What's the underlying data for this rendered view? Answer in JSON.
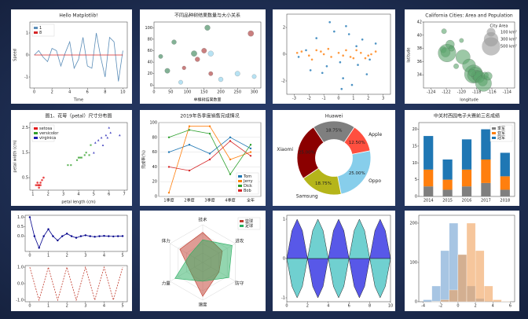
{
  "chart_data": [
    {
      "type": "line",
      "title": "Hello Matplotlib!",
      "xlabel": "Time",
      "ylabel": "Speed",
      "x": [
        0,
        0.5,
        1,
        1.5,
        2,
        2.5,
        3,
        3.5,
        4,
        4.5,
        5,
        5.5,
        6,
        6.5,
        7,
        7.5,
        8,
        8.5,
        9,
        9.5,
        10
      ],
      "series": [
        {
          "name": "1",
          "color": "#5b8db8",
          "values": [
            0,
            0.2,
            -0.1,
            -0.3,
            0.3,
            0.2,
            -0.5,
            0.1,
            0.6,
            -0.6,
            -0.2,
            0.8,
            -0.5,
            -0.6,
            1,
            -0.1,
            -1,
            0.8,
            0.6,
            -1.2,
            0.2
          ]
        },
        {
          "name": "8",
          "color": "#d62728",
          "values": [
            0,
            0,
            0,
            0,
            0,
            0,
            0,
            0,
            0,
            0,
            0,
            0,
            0,
            0,
            0,
            0,
            0,
            0,
            0,
            0,
            0
          ]
        }
      ],
      "xlim": [
        -0.5,
        10.5
      ],
      "ylim": [
        -1.5,
        1.5
      ],
      "xticks": [
        0,
        2,
        4,
        6,
        8,
        10
      ],
      "yticks": [
        -1,
        0,
        1
      ],
      "legend": "upper left"
    },
    {
      "type": "scatter",
      "title": "不同品种树结果数量与大小关系",
      "xlabel": "单棵树结果数量",
      "series": [
        {
          "color": "#2e7d4f",
          "x": [
            20,
            40,
            60,
            120,
            160
          ],
          "values": [
            50,
            25,
            75,
            55,
            100
          ],
          "sizes": [
            20,
            30,
            25,
            40,
            35
          ]
        },
        {
          "color": "#a52a2a",
          "x": [
            90,
            130,
            150,
            170,
            290
          ],
          "values": [
            30,
            45,
            60,
            20,
            90
          ],
          "sizes": [
            15,
            25,
            30,
            20,
            40
          ]
        },
        {
          "color": "#87ceeb",
          "x": [
            80,
            170,
            200,
            250,
            300
          ],
          "values": [
            5,
            55,
            10,
            20,
            15
          ],
          "sizes": [
            20,
            35,
            25,
            30,
            20
          ]
        }
      ],
      "xlim": [
        0,
        320
      ],
      "ylim": [
        -5,
        110
      ],
      "xticks": [
        0,
        50,
        100,
        150,
        200,
        250,
        300
      ],
      "yticks": [
        0,
        20,
        40,
        60,
        80,
        100
      ]
    },
    {
      "type": "scatter",
      "series": [
        {
          "color": "#1f77b4",
          "x": [
            -1.5,
            0.3,
            1.2,
            -0.8,
            0.5,
            2.1,
            -2.2,
            0.9,
            -0.3,
            1.6,
            -1.1,
            0.1,
            2.5,
            -1.9,
            0.7,
            -0.6,
            1.3,
            -2.7,
            0.2,
            1.9
          ],
          "values": [
            1.2,
            -1.8,
            0.6,
            -0.9,
            2.1,
            -0.4,
            0.3,
            -2.3,
            1.7,
            1.1,
            -1.4,
            -0.6,
            0.8,
            -1.2,
            1.5,
            2.4,
            -0.8,
            -0.2,
            -2.6,
            -1.5
          ]
        },
        {
          "color": "#ff7f0e",
          "x": [
            -2.5,
            -2,
            -1.5,
            -1,
            -0.5,
            0,
            0.5,
            1,
            1.5,
            2,
            2.5,
            -1.8,
            -0.7,
            0.3,
            1.2,
            2.2,
            -2.8,
            0.8,
            -1.2,
            1.8
          ],
          "values": [
            0.2,
            -0.1,
            0.3,
            0,
            -0.2,
            0.1,
            0.3,
            -0.3,
            0.1,
            -0.1,
            0.2,
            -0.4,
            0.4,
            -0.1,
            0.3,
            0,
            0.1,
            -0.2,
            0.2,
            -0.3
          ]
        }
      ],
      "xlim": [
        -3.5,
        3.5
      ],
      "ylim": [
        -3,
        3
      ],
      "xticks": [
        -3,
        -2,
        -1,
        0,
        1,
        2,
        3
      ],
      "yticks": [
        -2,
        0,
        2
      ]
    },
    {
      "type": "scatter",
      "title": "California Cities: Area and Population",
      "xlabel": "longitude",
      "ylabel": "latitude",
      "series": [
        {
          "color": "#5aa36a",
          "x": [
            -122.4,
            -122.1,
            -121.9,
            -121.5,
            -120.7,
            -119.8,
            -119,
            -118.4,
            -118.2,
            -118,
            -117.9,
            -117.7,
            -117.2,
            -117.1,
            -116.9,
            -116.5,
            -121.3,
            -122.3,
            -120,
            -118.6
          ],
          "values": [
            37.8,
            37.4,
            37.3,
            38.6,
            35.3,
            36.7,
            35.4,
            34.1,
            34,
            33.9,
            33.8,
            33.7,
            33,
            32.7,
            33.9,
            33.8,
            38,
            40.6,
            39.2,
            34.3
          ],
          "sizes": [
            50,
            120,
            470,
            100,
            30,
            300,
            250,
            500,
            350,
            150,
            80,
            200,
            120,
            380,
            60,
            90,
            40,
            30,
            20,
            70
          ]
        }
      ],
      "xlim": [
        -125,
        -113
      ],
      "ylim": [
        32,
        42
      ],
      "xticks": [
        -124,
        -122,
        -120,
        -118,
        -116,
        -114
      ],
      "yticks": [
        34,
        36,
        38,
        40,
        42
      ],
      "legend_title": "City Area",
      "size_legend": [
        {
          "value": 100,
          "label": "100 km²"
        },
        {
          "value": 300,
          "label": "300 km²"
        },
        {
          "value": 500,
          "label": "500 km²"
        }
      ]
    },
    {
      "type": "scatter",
      "title": "图1、花萼（petal）尺寸分布图",
      "xlabel": "petal length (cm)",
      "ylabel": "petal width (cm)",
      "series": [
        {
          "name": "setosa",
          "color": "#e31a1c",
          "marker": "o",
          "x": [
            1.3,
            1.4,
            1.5,
            1.4,
            1.6,
            1.2,
            1.5,
            1.7,
            1.3,
            1.4
          ],
          "values": [
            0.2,
            0.2,
            0.3,
            0.1,
            0.4,
            0.2,
            0.2,
            0.5,
            0.3,
            0.2
          ]
        },
        {
          "name": "versicolor",
          "color": "#33a02c",
          "marker": "s",
          "x": [
            3.5,
            4,
            4.5,
            4.2,
            3.9,
            4.7,
            4.4,
            3.3,
            4.1,
            4.8
          ],
          "values": [
            1,
            1.3,
            1.5,
            1.3,
            1.2,
            1.4,
            1.4,
            1,
            1.3,
            1.8
          ]
        },
        {
          "name": "virginica",
          "color": "#1f1fb4",
          "marker": "^",
          "x": [
            5.1,
            5.5,
            6,
            5.8,
            5.6,
            6.1,
            5,
            5.3,
            6.7,
            5.9
          ],
          "values": [
            1.9,
            2.1,
            2.5,
            2.2,
            1.8,
            2.3,
            1.5,
            2,
            2.2,
            2.1
          ]
        }
      ],
      "xlim": [
        0.8,
        7.2
      ],
      "ylim": [
        0,
        2.7
      ],
      "xticks": [
        1,
        2,
        3,
        4,
        5,
        6,
        7
      ],
      "yticks": [
        0.5,
        1.5,
        2.5
      ],
      "legend": "upper left"
    },
    {
      "type": "line",
      "title": "2019年各季度销售完成情况",
      "ylabel": "完成率(%)",
      "categories": [
        "1季度",
        "2季度",
        "3季度",
        "4季度",
        "全年"
      ],
      "series": [
        {
          "name": "Tom",
          "color": "#1f77b4",
          "marker": "o",
          "values": [
            60,
            70,
            58,
            80,
            65
          ]
        },
        {
          "name": "Jerry",
          "color": "#ff7f0e",
          "marker": "o",
          "values": [
            5,
            95,
            95,
            50,
            60
          ]
        },
        {
          "name": "Dick",
          "color": "#2ca02c",
          "marker": "o",
          "values": [
            80,
            90,
            85,
            30,
            70
          ]
        },
        {
          "name": "Bob",
          "color": "#d62728",
          "marker": "o",
          "values": [
            40,
            35,
            50,
            75,
            55
          ]
        }
      ],
      "ylim": [
        0,
        100
      ],
      "yticks": [
        0,
        20,
        40,
        60,
        80,
        100
      ],
      "grid": true,
      "legend": "lower right"
    },
    {
      "type": "pie",
      "categories": [
        "Huawei",
        "Apple",
        "Oppo",
        "Samsung",
        "Xiaomi"
      ],
      "values": [
        18.75,
        12.5,
        25,
        18.75,
        25
      ],
      "value_labels": [
        "18.75%",
        "12.50%",
        "25.00%",
        "18.75%",
        "25.00%"
      ],
      "colors": [
        "#7f7f7f",
        "#ff4f3f",
        "#87ceeb",
        "#b5b51a",
        "#8b0000"
      ]
    },
    {
      "type": "bar",
      "title": "中关村西园电子大赛前三名成绩",
      "categories": [
        "2014",
        "2015",
        "2016",
        "2017",
        "2018"
      ],
      "series": [
        {
          "name": "季军",
          "color": "#7f7f7f",
          "values": [
            3,
            2,
            3,
            4,
            2
          ]
        },
        {
          "name": "亚军",
          "color": "#ff7f0e",
          "values": [
            5,
            3,
            5,
            7,
            4
          ]
        },
        {
          "name": "冠军",
          "color": "#1f77b4",
          "values": [
            10,
            6,
            9,
            9,
            7
          ]
        }
      ],
      "ylim": [
        0,
        22
      ],
      "yticks": [
        0,
        5,
        10,
        15,
        20
      ],
      "legend": "upper right"
    },
    {
      "type": "line",
      "x": [
        0,
        0.25,
        0.5,
        0.75,
        1,
        1.25,
        1.5,
        1.75,
        2,
        2.25,
        2.5,
        2.75,
        3,
        3.25,
        3.5,
        3.75,
        4,
        4.25,
        4.5,
        4.75,
        5
      ],
      "series": [
        {
          "color": "#00008b",
          "marker": "o",
          "values": [
            1,
            0,
            -0.61,
            0,
            0.368,
            0,
            -0.223,
            0,
            0.135,
            0,
            -0.082,
            0,
            0.05,
            0,
            -0.03,
            0,
            0.018,
            0,
            -0.011,
            0,
            0.007
          ]
        }
      ],
      "xlim": [
        -0.25,
        5.25
      ],
      "ylim": [
        -0.8,
        1.1
      ],
      "xticks": [
        0,
        1,
        2,
        3,
        4,
        5
      ],
      "yticks": [
        {
          "value": 0,
          "label": "0.0"
        },
        {
          "value": 0.5,
          "label": "0.5"
        },
        {
          "value": 1,
          "label": "1.0"
        }
      ]
    },
    {
      "type": "line",
      "x": [
        0,
        0.25,
        0.5,
        0.75,
        1,
        1.25,
        1.5,
        1.75,
        2,
        2.25,
        2.5,
        2.75,
        3,
        3.25,
        3.5,
        3.75,
        4,
        4.25,
        4.5,
        4.75,
        5
      ],
      "series": [
        {
          "color": "#c0392b",
          "dash": true,
          "values": [
            1,
            0,
            -1,
            0,
            1,
            0,
            -1,
            0,
            1,
            0,
            -1,
            0,
            1,
            0,
            -1,
            0,
            1,
            0,
            -1,
            0,
            1
          ]
        }
      ],
      "xlim": [
        -0.25,
        5.25
      ],
      "ylim": [
        -1.1,
        1.1
      ],
      "xticks": [
        0,
        1,
        2,
        3,
        4,
        5
      ],
      "yticks": [
        {
          "value": -1,
          "label": "-1.0"
        },
        {
          "value": 0,
          "label": "0.0"
        },
        {
          "value": 1,
          "label": "1.0"
        }
      ]
    },
    {
      "type": "radar",
      "categories": [
        "技术",
        "进攻",
        "防守",
        "速度",
        "力量",
        "体力"
      ],
      "series": [
        {
          "name": "篮球",
          "color": "#c0392b",
          "values": [
            80,
            60,
            50,
            90,
            40,
            70
          ]
        },
        {
          "name": "足球",
          "color": "#27ae60",
          "values": [
            60,
            90,
            80,
            50,
            85,
            40
          ]
        }
      ],
      "ylim": [
        0,
        100
      ],
      "legend": "upper right"
    },
    {
      "type": "area",
      "x": [
        0,
        0.5,
        1,
        1.5,
        2,
        2.5,
        3,
        3.5,
        4,
        4.5,
        5,
        5.5,
        6,
        6.5,
        7,
        7.5,
        8,
        8.5,
        9,
        9.5,
        10
      ],
      "series": [
        {
          "color": "#2020e0",
          "values": [
            0,
            0.71,
            1,
            0.71,
            0,
            -0.71,
            -1,
            -0.71,
            0,
            0.71,
            1,
            0.71,
            0,
            -0.71,
            -1,
            -0.71,
            0,
            0.71,
            1,
            0.71,
            0
          ]
        },
        {
          "color": "#40c0c0",
          "values": [
            0,
            -0.71,
            -1,
            -0.71,
            0,
            0.71,
            1,
            0.71,
            0,
            -0.71,
            -1,
            -0.71,
            0,
            0.71,
            1,
            0.71,
            0,
            -0.71,
            -1,
            -0.71,
            0
          ]
        }
      ],
      "xlim": [
        0,
        10
      ],
      "ylim": [
        -1.1,
        1.1
      ],
      "xticks": [
        0,
        2,
        4,
        6,
        8,
        10
      ],
      "yticks": [
        -1,
        0,
        1
      ]
    },
    {
      "type": "histogram",
      "bins": [
        -4,
        -3,
        -2,
        -1,
        0,
        1,
        2,
        3,
        4,
        5,
        6
      ],
      "series": [
        {
          "color": "#6c9ed0",
          "values": [
            5,
            40,
            130,
            200,
            120,
            40,
            8,
            2,
            0,
            0
          ]
        },
        {
          "color": "#f0a05a",
          "values": [
            0,
            1,
            5,
            30,
            120,
            200,
            130,
            40,
            5,
            1
          ]
        }
      ],
      "xlim": [
        -4.5,
        6.5
      ],
      "ylim": [
        0,
        220
      ],
      "xticks": [
        -4,
        -2,
        0,
        2,
        4,
        6
      ],
      "yticks": [
        0,
        100,
        200
      ]
    }
  ]
}
